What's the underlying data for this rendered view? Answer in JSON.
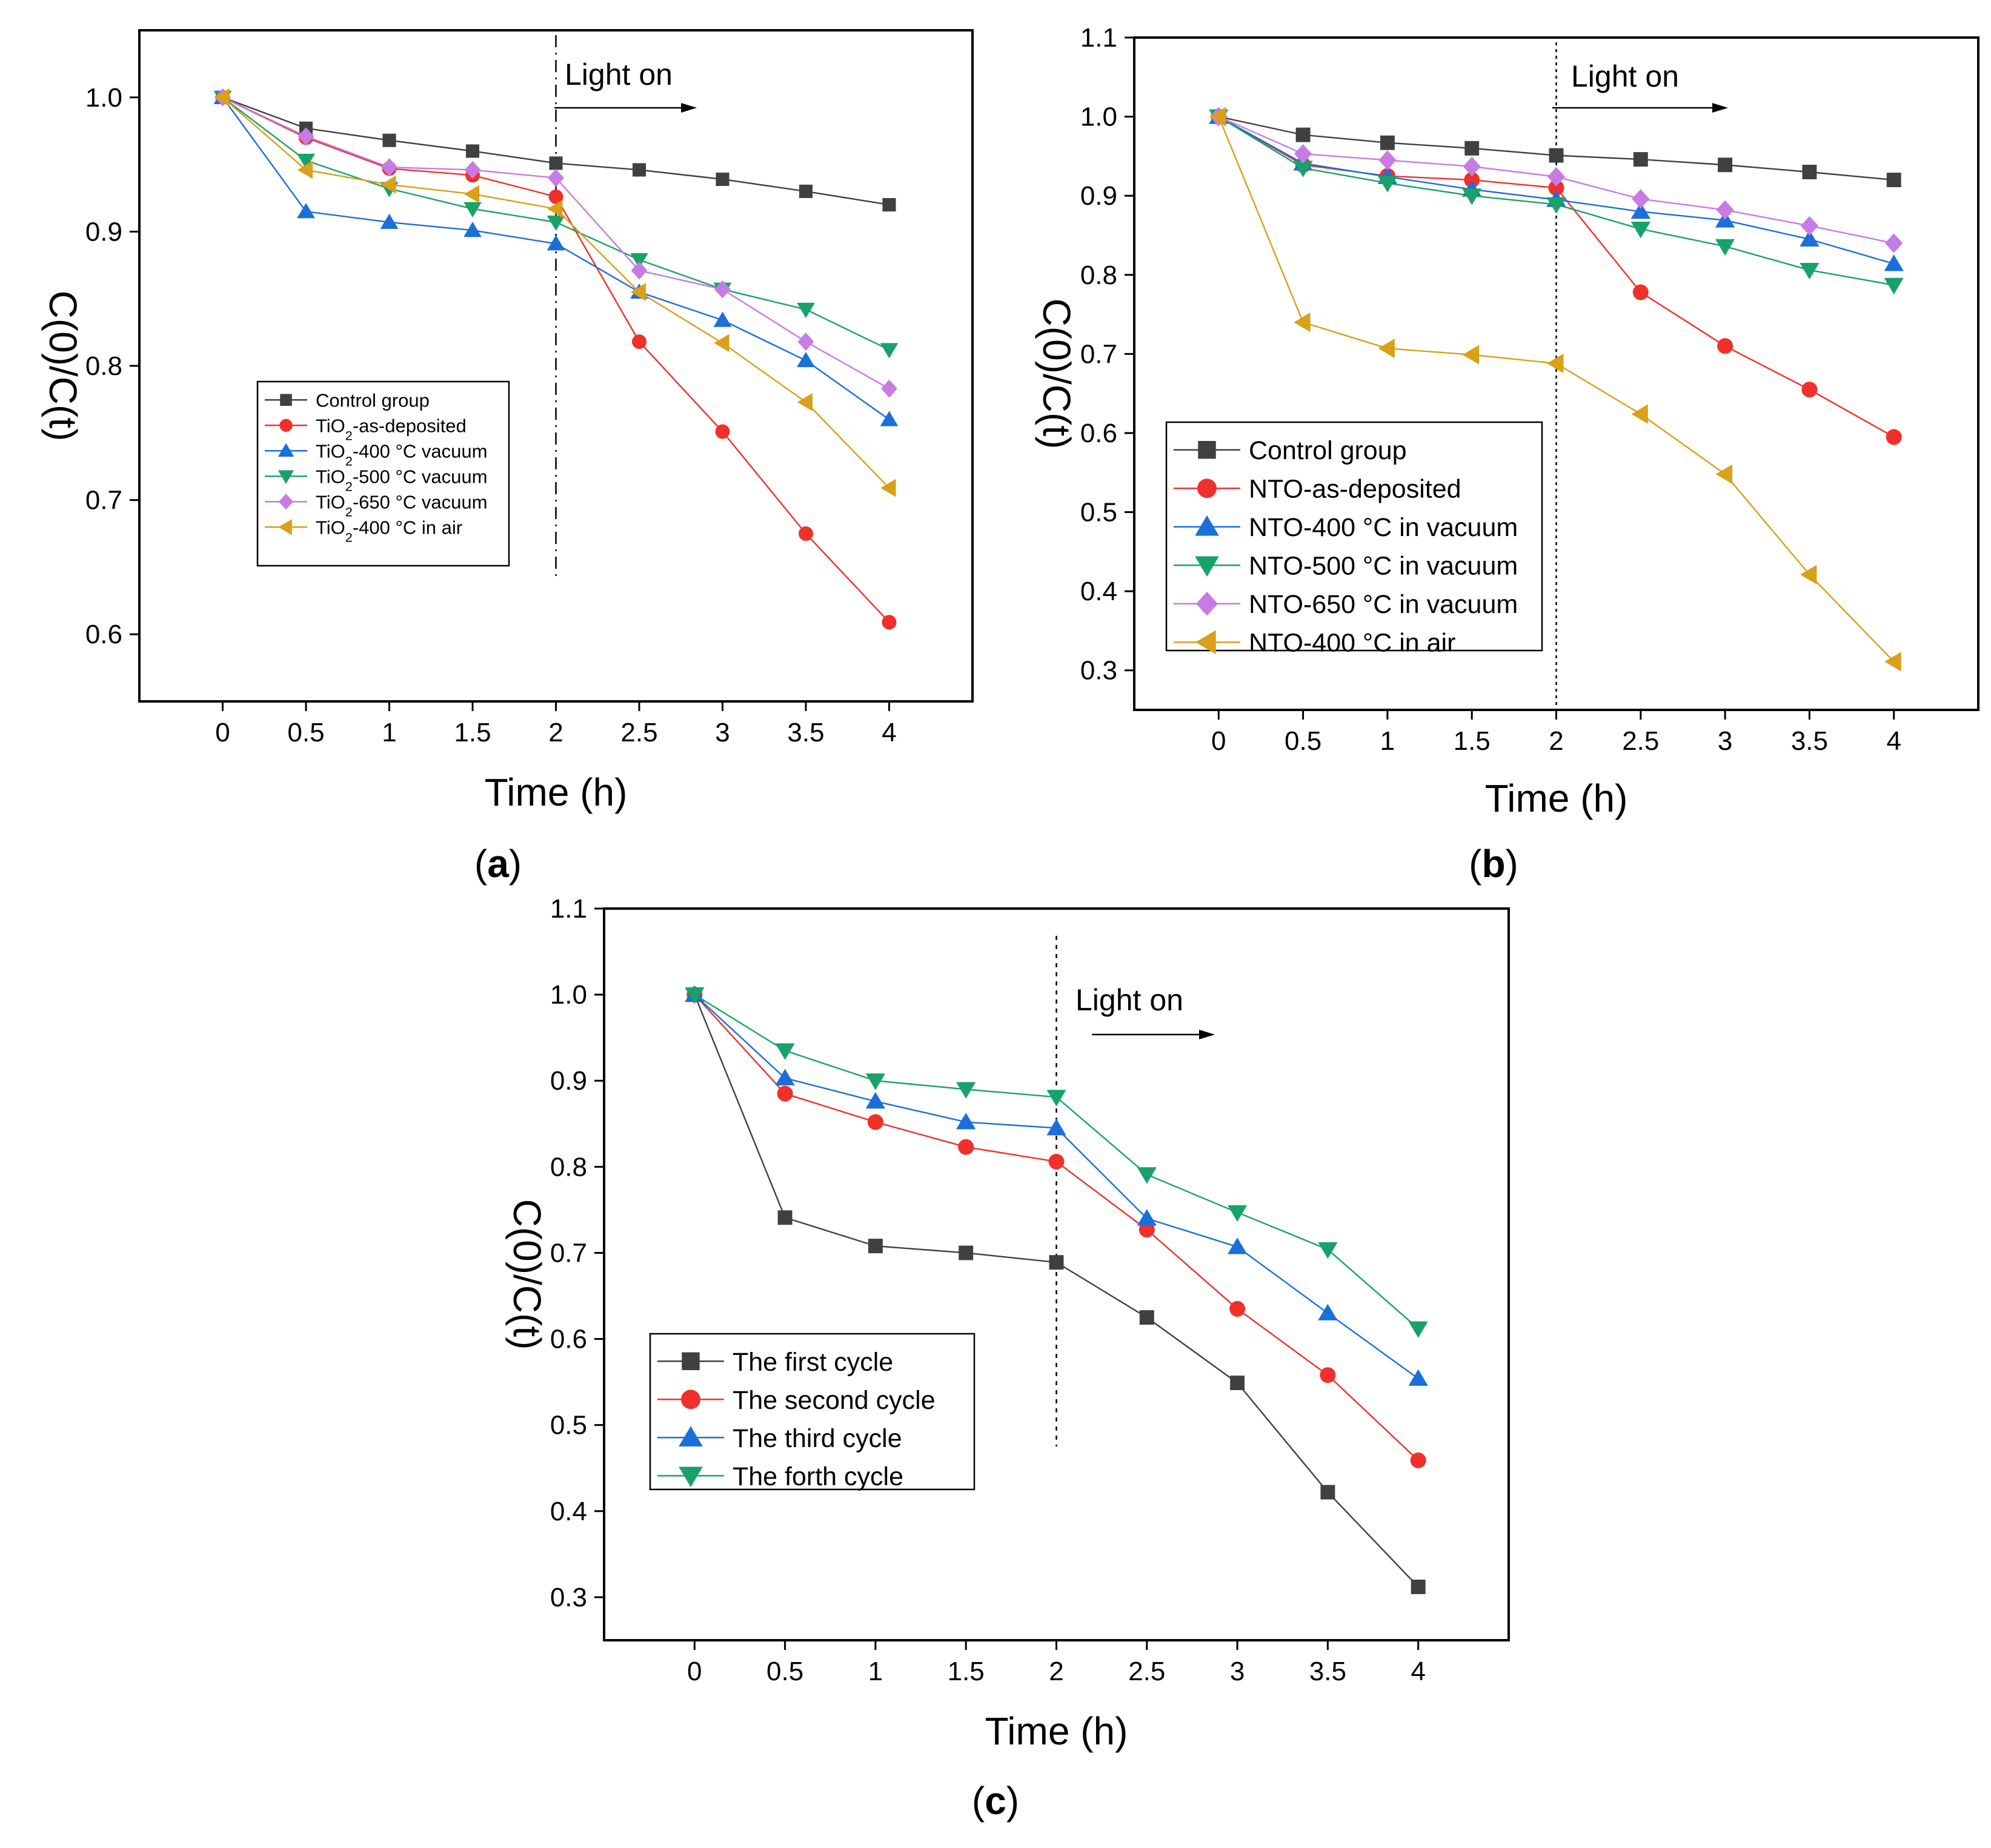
{
  "colors": {
    "control": "#404040",
    "red": "#f0302a",
    "blue": "#1a6fd8",
    "green": "#18a26a",
    "violet": "#c77be4",
    "orange": "#d9a018"
  },
  "chart_data": [
    {
      "panel": "(a)",
      "type": "line",
      "xlabel": "Time (h)",
      "ylabel": "C(0)/C(t)",
      "x": [
        0,
        0.5,
        1,
        1.5,
        2,
        2.5,
        3,
        3.5,
        4
      ],
      "x_ticks": [
        "0",
        "0.5",
        "1",
        "1.5",
        "2",
        "2.5",
        "3",
        "3.5",
        "4"
      ],
      "xlim": [
        -0.5,
        4.5
      ],
      "ylim": [
        0.55,
        1.05
      ],
      "y_ticks": [
        "0.6",
        "0.7",
        "0.8",
        "0.9",
        "1.0"
      ],
      "annotation": "Light on",
      "light_on_x": 2,
      "legend_position": "center-left",
      "series": [
        {
          "name": "Control group",
          "marker": "square",
          "color": "#404040",
          "values": [
            1.0,
            0.977,
            0.968,
            0.96,
            0.951,
            0.946,
            0.939,
            0.93,
            0.92
          ]
        },
        {
          "name": "TiO2-as-deposited",
          "name_parts": [
            "TiO",
            "2",
            "-as-deposited"
          ],
          "marker": "circle",
          "color": "#f0302a",
          "values": [
            1.0,
            0.97,
            0.947,
            0.942,
            0.926,
            0.818,
            0.751,
            0.675,
            0.609
          ]
        },
        {
          "name": "TiO2-400 °C  vacuum",
          "name_parts": [
            "TiO",
            "2",
            "-400 °C  vacuum"
          ],
          "marker": "triangle-up",
          "color": "#1a6fd8",
          "values": [
            1.0,
            0.915,
            0.907,
            0.901,
            0.891,
            0.855,
            0.834,
            0.804,
            0.76
          ]
        },
        {
          "name": "TiO2-500 °C  vacuum",
          "name_parts": [
            "TiO",
            "2",
            "-500 °C  vacuum"
          ],
          "marker": "triangle-down",
          "color": "#18a26a",
          "values": [
            1.0,
            0.953,
            0.932,
            0.917,
            0.907,
            0.879,
            0.857,
            0.842,
            0.812
          ]
        },
        {
          "name": "TiO2-650 °C vacuum",
          "name_parts": [
            "TiO",
            "2",
            "-650 °C vacuum"
          ],
          "marker": "diamond",
          "color": "#c77be4",
          "values": [
            1.0,
            0.971,
            0.948,
            0.946,
            0.94,
            0.871,
            0.857,
            0.818,
            0.783
          ]
        },
        {
          "name": "TiO2-400 °C in air",
          "name_parts": [
            "TiO",
            "2",
            "-400 °C in air"
          ],
          "marker": "triangle-left",
          "color": "#d9a018",
          "values": [
            1.0,
            0.946,
            0.935,
            0.928,
            0.917,
            0.855,
            0.817,
            0.773,
            0.709
          ]
        }
      ]
    },
    {
      "panel": "(b)",
      "type": "line",
      "xlabel": "Time (h)",
      "ylabel": "C(0)/C(t)",
      "x": [
        0,
        0.5,
        1,
        1.5,
        2,
        2.5,
        3,
        3.5,
        4
      ],
      "x_ticks": [
        "0",
        "0.5",
        "1",
        "1.5",
        "2",
        "2.5",
        "3",
        "3.5",
        "4"
      ],
      "xlim": [
        -0.5,
        4.5
      ],
      "ylim": [
        0.25,
        1.1
      ],
      "y_ticks": [
        "0.3",
        "0.4",
        "0.5",
        "0.6",
        "0.7",
        "0.8",
        "0.9",
        "1.0",
        "1.1"
      ],
      "annotation": "Light on",
      "light_on_x": 2,
      "legend_position": "bottom-left",
      "series": [
        {
          "name": "Control group",
          "name_parts": [
            "Control group"
          ],
          "marker": "square",
          "color": "#404040",
          "values": [
            1.0,
            0.977,
            0.967,
            0.96,
            0.951,
            0.946,
            0.939,
            0.93,
            0.92
          ]
        },
        {
          "name": "NTO-as-deposited",
          "name_parts": [
            "NTO-as-deposited"
          ],
          "marker": "circle",
          "color": "#f0302a",
          "values": [
            1.0,
            0.939,
            0.925,
            0.92,
            0.91,
            0.778,
            0.71,
            0.655,
            0.595
          ]
        },
        {
          "name": "NTO-400 °C in vacuum",
          "name_parts": [
            "NTO-400 °C in vacuum"
          ],
          "marker": "triangle-up",
          "color": "#1a6fd8",
          "values": [
            1.0,
            0.941,
            0.924,
            0.908,
            0.895,
            0.88,
            0.869,
            0.845,
            0.814
          ]
        },
        {
          "name": "NTO-500 °C in vacuum",
          "name_parts": [
            "NTO-500 °C in vacuum"
          ],
          "marker": "triangle-down",
          "color": "#18a26a",
          "values": [
            1.0,
            0.935,
            0.916,
            0.9,
            0.889,
            0.858,
            0.836,
            0.806,
            0.787
          ]
        },
        {
          "name": "NTO-650 °C in vacuum",
          "name_parts": [
            "NTO-650 °C in vacuum"
          ],
          "marker": "diamond",
          "color": "#c77be4",
          "values": [
            1.0,
            0.953,
            0.945,
            0.937,
            0.924,
            0.896,
            0.882,
            0.862,
            0.84
          ]
        },
        {
          "name": "NTO-400 °C in air",
          "name_parts": [
            "NTO-400 °C in air"
          ],
          "marker": "triangle-left",
          "color": "#d9a018",
          "values": [
            1.0,
            0.74,
            0.707,
            0.699,
            0.688,
            0.624,
            0.548,
            0.421,
            0.311
          ]
        }
      ]
    },
    {
      "panel": "(c)",
      "type": "line",
      "xlabel": "Time (h)",
      "ylabel": "C(0)/C(t)",
      "x": [
        0,
        0.5,
        1,
        1.5,
        2,
        2.5,
        3,
        3.5,
        4
      ],
      "x_ticks": [
        "0",
        "0.5",
        "1",
        "1.5",
        "2",
        "2.5",
        "3",
        "3.5",
        "4"
      ],
      "xlim": [
        -0.5,
        4.5
      ],
      "ylim": [
        0.25,
        1.1
      ],
      "y_ticks": [
        "0.3",
        "0.4",
        "0.5",
        "0.6",
        "0.7",
        "0.8",
        "0.9",
        "1.0",
        "1.1"
      ],
      "annotation": "Light on",
      "light_on_x": 2,
      "legend_position": "bottom-left",
      "series": [
        {
          "name": "The first cycle",
          "name_parts": [
            "The first cycle"
          ],
          "marker": "square",
          "color": "#404040",
          "values": [
            1.0,
            0.741,
            0.708,
            0.7,
            0.689,
            0.625,
            0.549,
            0.422,
            0.312
          ]
        },
        {
          "name": "The second cycle",
          "name_parts": [
            "The second cycle"
          ],
          "marker": "circle",
          "color": "#f0302a",
          "values": [
            1.0,
            0.885,
            0.852,
            0.823,
            0.806,
            0.727,
            0.635,
            0.558,
            0.459
          ]
        },
        {
          "name": "The third cycle",
          "name_parts": [
            "The third cycle"
          ],
          "marker": "triangle-up",
          "color": "#1a6fd8",
          "values": [
            1.0,
            0.903,
            0.876,
            0.852,
            0.845,
            0.74,
            0.707,
            0.63,
            0.554
          ]
        },
        {
          "name": "The forth cycle",
          "name_parts": [
            "The forth cycle"
          ],
          "marker": "triangle-down",
          "color": "#18a26a",
          "values": [
            1.0,
            0.935,
            0.9,
            0.89,
            0.881,
            0.791,
            0.747,
            0.704,
            0.612
          ]
        }
      ]
    }
  ]
}
